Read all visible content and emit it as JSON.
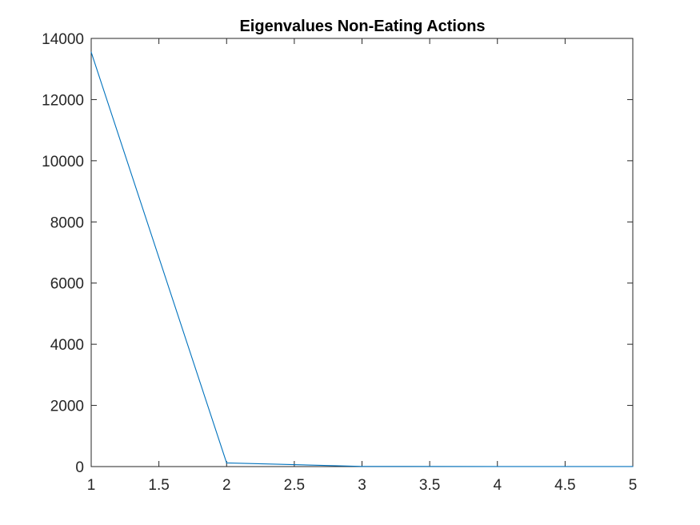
{
  "chart_data": {
    "type": "line",
    "title": "Eigenvalues Non-Eating Actions",
    "xlabel": "",
    "ylabel": "",
    "xlim": [
      1,
      5
    ],
    "ylim": [
      0,
      14000
    ],
    "x_ticks": [
      1,
      1.5,
      2,
      2.5,
      3,
      3.5,
      4,
      4.5,
      5
    ],
    "x_tick_labels": [
      "1",
      "1.5",
      "2",
      "2.5",
      "3",
      "3.5",
      "4",
      "4.5",
      "5"
    ],
    "y_ticks": [
      0,
      2000,
      4000,
      6000,
      8000,
      10000,
      12000,
      14000
    ],
    "y_tick_labels": [
      "0",
      "2000",
      "4000",
      "6000",
      "8000",
      "10000",
      "12000",
      "14000"
    ],
    "grid": false,
    "series": [
      {
        "x": [
          1,
          2,
          3,
          4,
          5
        ],
        "values": [
          13550,
          120,
          5,
          2,
          1
        ],
        "color": "#0072bd"
      }
    ],
    "colors": {
      "axis": "#262626",
      "line": "#0072bd",
      "background": "#ffffff"
    }
  }
}
